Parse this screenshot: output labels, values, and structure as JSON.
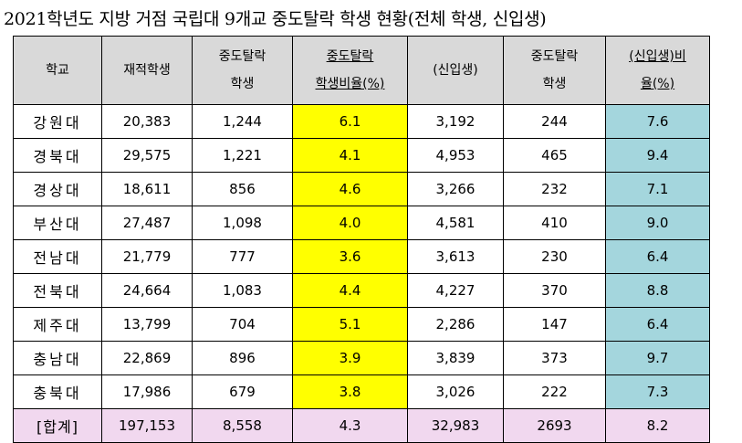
{
  "title": "2021학년도 지방 거점 국립대 9개교 중도탈락 학생 현황(전체 학생, 신입생)",
  "headers": [
    {
      "line1": "학교",
      "line2": ""
    },
    {
      "line1": "재적학생",
      "line2": ""
    },
    {
      "line1": "중도탈락",
      "line2": "학생"
    },
    {
      "line1": "중도탈락",
      "line2": "학생비율(%)"
    },
    {
      "line1": "(신입생)",
      "line2": ""
    },
    {
      "line1": "중도탈락",
      "line2": "학생"
    },
    {
      "line1": "(신입생)비",
      "line2": "율(%)"
    }
  ],
  "rows": [
    [
      "강원대",
      "20,383",
      "1,244",
      "6.1",
      "3,192",
      "244",
      "7.6"
    ],
    [
      "경북대",
      "29,575",
      "1,221",
      "4.1",
      "4,953",
      "465",
      "9.4"
    ],
    [
      "경상대",
      "18,611",
      "856",
      "4.6",
      "3,266",
      "232",
      "7.1"
    ],
    [
      "부산대",
      "27,487",
      "1,098",
      "4.0",
      "4,581",
      "410",
      "9.0"
    ],
    [
      "전남대",
      "21,779",
      "777",
      "3.6",
      "3,613",
      "230",
      "6.4"
    ],
    [
      "전북대",
      "24,664",
      "1,083",
      "4.4",
      "4,227",
      "370",
      "8.8"
    ],
    [
      "제주대",
      "13,799",
      "704",
      "5.1",
      "2,286",
      "147",
      "6.4"
    ],
    [
      "충남대",
      "22,869",
      "896",
      "3.9",
      "3,839",
      "373",
      "9.7"
    ],
    [
      "충북대",
      "17,986",
      "679",
      "3.8",
      "3,026",
      "222",
      "7.3"
    ]
  ],
  "total": [
    "[합계]",
    "197,153",
    "8,558",
    "4.3",
    "32,983",
    "2693",
    "8.2"
  ],
  "colors": {
    "header": "#d9d9d9",
    "highlight_yellow": "#ffff00",
    "highlight_blue": "#a4d6dd",
    "total_row": "#f1d8ef"
  }
}
